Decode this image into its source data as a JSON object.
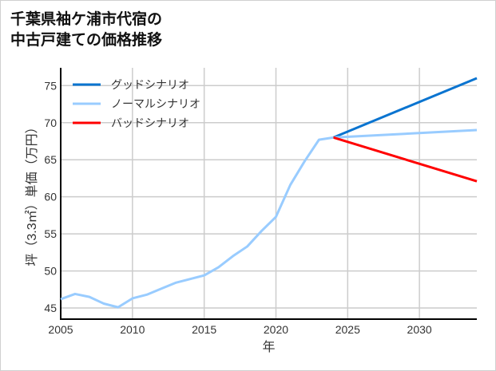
{
  "title_lines": [
    "千葉県袖ケ浦市代宿の",
    "中古戸建ての価格推移"
  ],
  "chart_data": {
    "type": "line",
    "title": "千葉県袖ケ浦市代宿の中古戸建ての価格推移",
    "xlabel": "年",
    "ylabel": "坪（3.3㎡）単価（万円）",
    "xlim": [
      2005,
      2034
    ],
    "ylim": [
      43.5,
      77.4
    ],
    "xticks": [
      2005,
      2010,
      2015,
      2020,
      2025,
      2030
    ],
    "yticks": [
      45,
      50,
      55,
      60,
      65,
      70,
      75
    ],
    "grid": true,
    "legend_position": "top-left",
    "history": {
      "x": [
        2005,
        2006,
        2007,
        2008,
        2009,
        2010,
        2011,
        2012,
        2013,
        2014,
        2015,
        2016,
        2017,
        2018,
        2019,
        2020,
        2021,
        2022,
        2023,
        2024
      ],
      "y": [
        46.2,
        46.9,
        46.5,
        45.6,
        45.1,
        46.3,
        46.8,
        47.6,
        48.4,
        48.9,
        49.4,
        50.5,
        52.0,
        53.3,
        55.4,
        57.3,
        61.6,
        64.8,
        67.7,
        68.0
      ]
    },
    "series": [
      {
        "name": "グッドシナリオ",
        "color": "#0a74d0",
        "x": [
          2024,
          2034
        ],
        "y": [
          68.0,
          76.0
        ]
      },
      {
        "name": "ノーマルシナリオ",
        "color": "#99ccff",
        "x": [
          2024,
          2034
        ],
        "y": [
          68.0,
          69.0
        ]
      },
      {
        "name": "バッドシナリオ",
        "color": "#ff0000",
        "x": [
          2024,
          2034
        ],
        "y": [
          68.0,
          62.1
        ]
      }
    ]
  }
}
